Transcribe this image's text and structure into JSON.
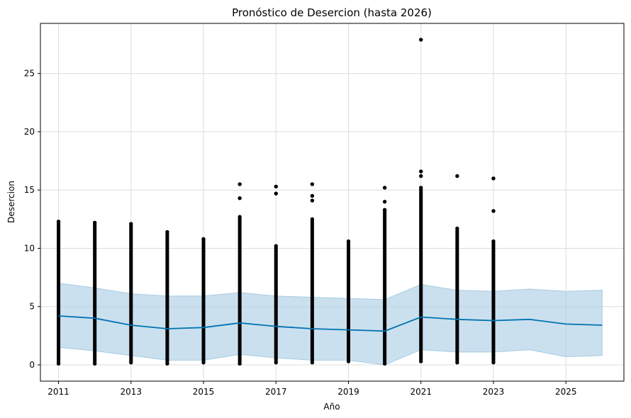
{
  "chart_data": {
    "type": "scatter",
    "title": "Pronóstico de Desercion (hasta 2026)",
    "xlabel": "Año",
    "ylabel": "Desercion",
    "xlim": [
      2010.5,
      2026.6
    ],
    "ylim": [
      -1.4,
      29.3
    ],
    "x_ticks": [
      "2011",
      "2013",
      "2015",
      "2017",
      "2019",
      "2021",
      "2023",
      "2025"
    ],
    "y_ticks": [
      "0",
      "5",
      "10",
      "15",
      "20",
      "25"
    ],
    "grid": true,
    "colors": {
      "points": "#000000",
      "forecast_line": "#0072b2",
      "interval": "#a6cbe3"
    },
    "observed": [
      {
        "x": 2011,
        "min": 0.1,
        "max": 12.3,
        "outliers": []
      },
      {
        "x": 2012,
        "min": 0.1,
        "max": 12.2,
        "outliers": []
      },
      {
        "x": 2013,
        "min": 0.2,
        "max": 12.1,
        "outliers": []
      },
      {
        "x": 2014,
        "min": 0.1,
        "max": 11.4,
        "outliers": []
      },
      {
        "x": 2015,
        "min": 0.2,
        "max": 10.8,
        "outliers": []
      },
      {
        "x": 2016,
        "min": 0.1,
        "max": 12.7,
        "outliers": [
          14.3,
          15.5
        ]
      },
      {
        "x": 2017,
        "min": 0.2,
        "max": 10.2,
        "outliers": [
          14.7,
          15.3
        ]
      },
      {
        "x": 2018,
        "min": 0.2,
        "max": 12.5,
        "outliers": [
          14.1,
          14.5,
          15.5
        ]
      },
      {
        "x": 2019,
        "min": 0.3,
        "max": 10.6,
        "outliers": []
      },
      {
        "x": 2020,
        "min": 0.1,
        "max": 13.3,
        "outliers": [
          14.0,
          15.2
        ]
      },
      {
        "x": 2021,
        "min": 0.3,
        "max": 15.2,
        "outliers": [
          16.2,
          16.6,
          27.9
        ]
      },
      {
        "x": 2022,
        "min": 0.2,
        "max": 11.7,
        "outliers": [
          16.2
        ]
      },
      {
        "x": 2023,
        "min": 0.2,
        "max": 10.6,
        "outliers": [
          13.2,
          16.0
        ]
      }
    ],
    "forecast": {
      "x": [
        2011,
        2012,
        2013,
        2014,
        2015,
        2016,
        2017,
        2018,
        2019,
        2020,
        2021,
        2022,
        2023,
        2024,
        2025,
        2026
      ],
      "yhat": [
        4.2,
        4.0,
        3.4,
        3.1,
        3.2,
        3.6,
        3.3,
        3.1,
        3.0,
        2.9,
        4.1,
        3.9,
        3.8,
        3.9,
        3.5,
        3.4
      ],
      "yhat_lower": [
        1.5,
        1.2,
        0.8,
        0.4,
        0.4,
        0.9,
        0.6,
        0.4,
        0.4,
        0.0,
        1.3,
        1.1,
        1.1,
        1.3,
        0.7,
        0.8
      ],
      "yhat_upper": [
        7.0,
        6.6,
        6.1,
        5.9,
        5.9,
        6.2,
        5.9,
        5.8,
        5.7,
        5.6,
        6.9,
        6.4,
        6.3,
        6.5,
        6.3,
        6.4
      ]
    }
  }
}
